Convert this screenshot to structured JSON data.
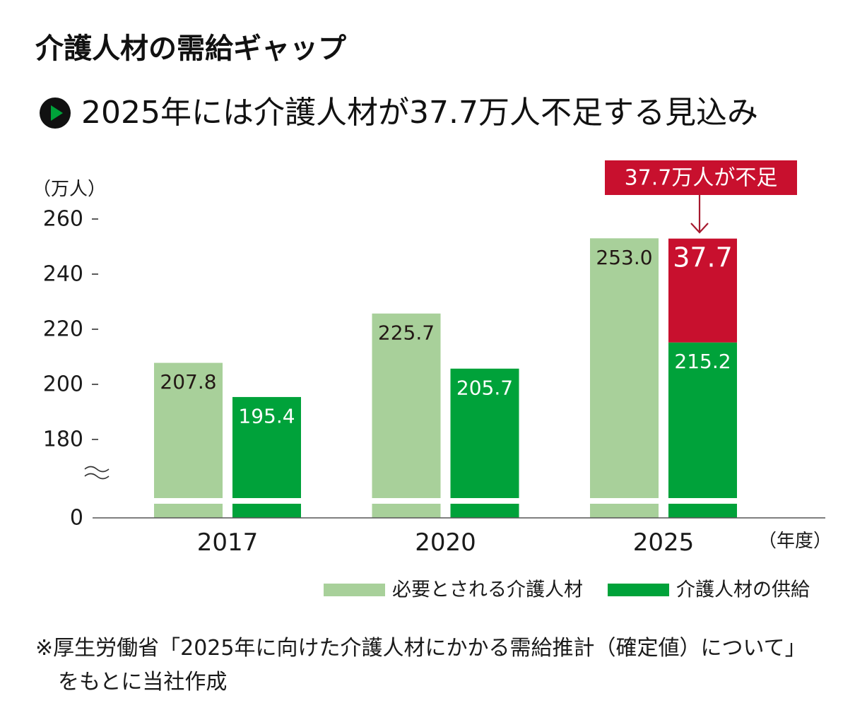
{
  "colors": {
    "required": "#a8d09a",
    "supply": "#00a23a",
    "shortage": "#c8102e",
    "callout": "#c8102e",
    "arrow": "#a6192e",
    "label_dark": "#231815",
    "axis": "#555555",
    "icon_circle": "#111111",
    "icon_triangle": "#00a23a"
  },
  "subtitle_icon": "play-circle-icon",
  "footnote": {
    "line1": "※厚生労働省「2025年に向けた介護人材にかかる需給推計（確定値）について」",
    "line2": "をもとに当社作成"
  },
  "chart_data": {
    "type": "bar",
    "title": "介護人材の需給ギャップ",
    "subtitle": "2025年には介護人材が37.7万人不足する見込み",
    "categories": [
      "2017",
      "2020",
      "2025"
    ],
    "xlabel": "（年度）",
    "ylabel": "（万人）",
    "yticks": [
      "0",
      "180",
      "200",
      "220",
      "240",
      "260"
    ],
    "ylim": [
      180,
      260
    ],
    "axis_break": true,
    "grid": false,
    "series": [
      {
        "name": "必要とされる介護人材",
        "values": [
          207.8,
          225.7,
          253.0
        ],
        "labels": [
          "207.8",
          "225.7",
          "253.0"
        ]
      },
      {
        "name": "介護人材の供給",
        "values": [
          195.4,
          205.7,
          215.2
        ],
        "labels": [
          "195.4",
          "205.7",
          "215.2"
        ]
      }
    ],
    "shortage": {
      "category": "2025",
      "value": 37.7,
      "label": "37.7"
    },
    "annotation": "37.7万人が不足",
    "legend": {
      "position": "bottom-right"
    }
  }
}
